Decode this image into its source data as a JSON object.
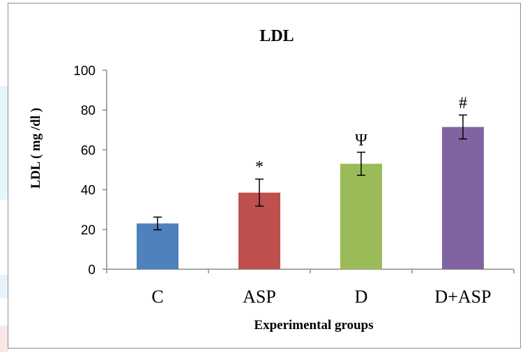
{
  "chart_data": {
    "type": "bar",
    "title": "LDL",
    "xlabel": "Experimental groups",
    "ylabel": "LDL ( mg /dl )",
    "ylim": [
      0,
      100
    ],
    "yticks": [
      "0",
      "20",
      "40",
      "60",
      "80",
      "100"
    ],
    "categories": [
      "C",
      "ASP",
      "D",
      "D+ASP"
    ],
    "values": [
      23,
      38.5,
      53,
      71.5
    ],
    "errors": [
      3.2,
      6.8,
      5.8,
      6.0
    ],
    "significance": [
      "",
      "*",
      "Ψ",
      "#"
    ],
    "colors": [
      "#4f81bd",
      "#c0504d",
      "#9bbb59",
      "#8064a2"
    ],
    "grid": false,
    "legend": "none"
  }
}
